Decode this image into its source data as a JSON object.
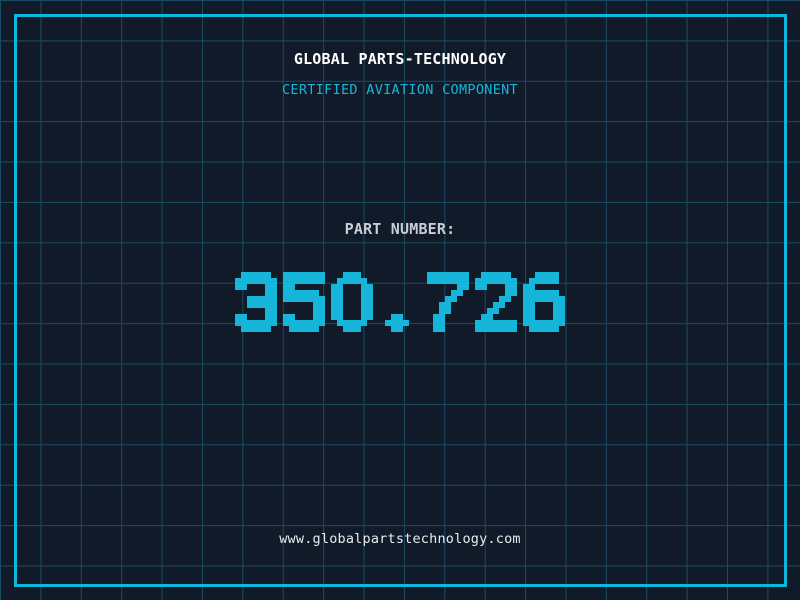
{
  "colors": {
    "background": "#111a29",
    "grid_line": "#1c4a62",
    "frame": "#0db7dc",
    "accent_cyan": "#15b6d9",
    "title_white": "#ffffff",
    "label_gray": "#c7ccd5",
    "url_white": "#e9eced"
  },
  "header": {
    "title": "GLOBAL PARTS-TECHNOLOGY",
    "subtitle": "CERTIFIED AVIATION COMPONENT"
  },
  "part": {
    "label": "PART NUMBER:",
    "number": "350.726"
  },
  "footer": {
    "website": "www.globalpartstechnology.com"
  }
}
